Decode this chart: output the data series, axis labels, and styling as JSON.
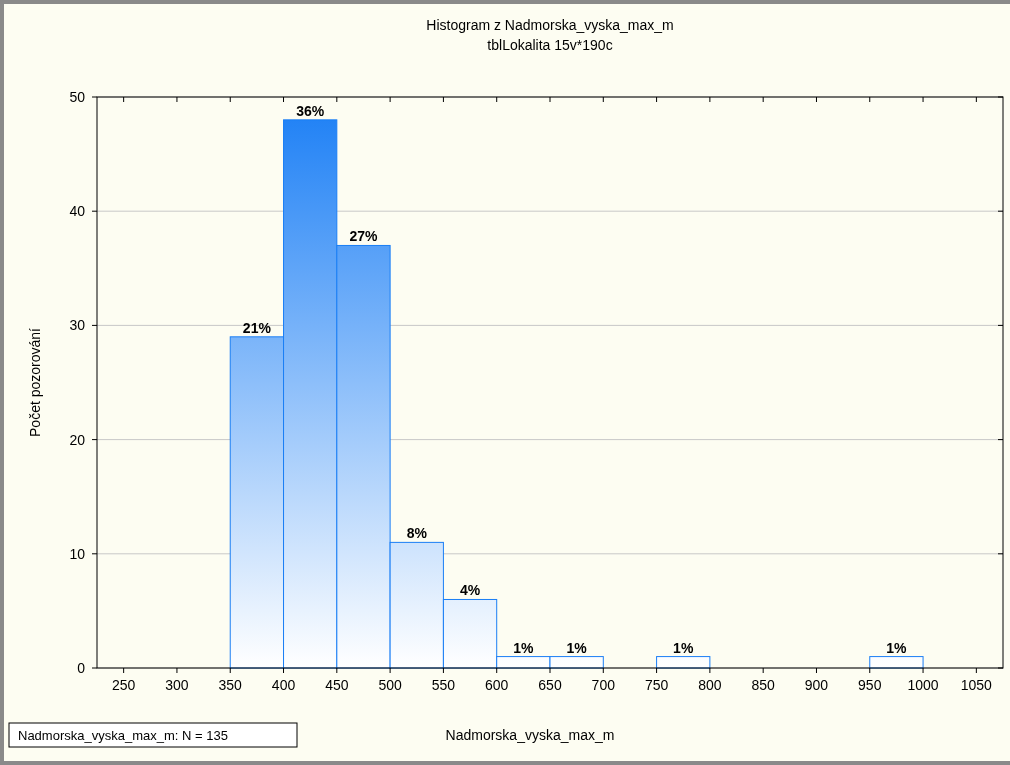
{
  "chart_data": {
    "type": "histogram",
    "title": "Histogram z Nadmorska_vyska_max_m",
    "subtitle": "tblLokalita 15v*190c",
    "xlabel": "Nadmorska_vyska_max_m",
    "ylabel": "Počet pozorování",
    "bins": [
      250,
      300,
      350,
      400,
      450,
      500,
      550,
      600,
      650,
      700,
      750,
      800,
      850,
      900,
      950,
      1000,
      1050
    ],
    "values": [
      0,
      0,
      29,
      48,
      37,
      11,
      6,
      1,
      1,
      0,
      1,
      0,
      0,
      0,
      1,
      0
    ],
    "color": "#1a7ef5",
    "xlim": [
      225,
      1075
    ],
    "xticks": [
      250,
      300,
      350,
      400,
      450,
      500,
      550,
      600,
      650,
      700,
      750,
      800,
      850,
      900,
      950,
      1000,
      1050
    ],
    "ylim": [
      0,
      50
    ],
    "yticks": [
      0,
      10,
      20,
      30,
      40,
      50
    ],
    "grid": "y",
    "annotations": [
      "Nadmorska_vyska_max_m:  N = 135",
      {
        "text": "21%",
        "x": 375,
        "y": 29
      },
      {
        "text": "36%",
        "x": 425,
        "y": 48
      },
      {
        "text": "27%",
        "x": 475,
        "y": 37
      },
      {
        "text": "8%",
        "x": 525,
        "y": 11
      },
      {
        "text": "4%",
        "x": 575,
        "y": 6
      },
      {
        "text": "1%",
        "x": 625,
        "y": 1
      },
      {
        "text": "1%",
        "x": 675,
        "y": 1
      },
      {
        "text": "1%",
        "x": 775,
        "y": 1
      },
      {
        "text": "1%",
        "x": 975,
        "y": 1
      }
    ]
  }
}
